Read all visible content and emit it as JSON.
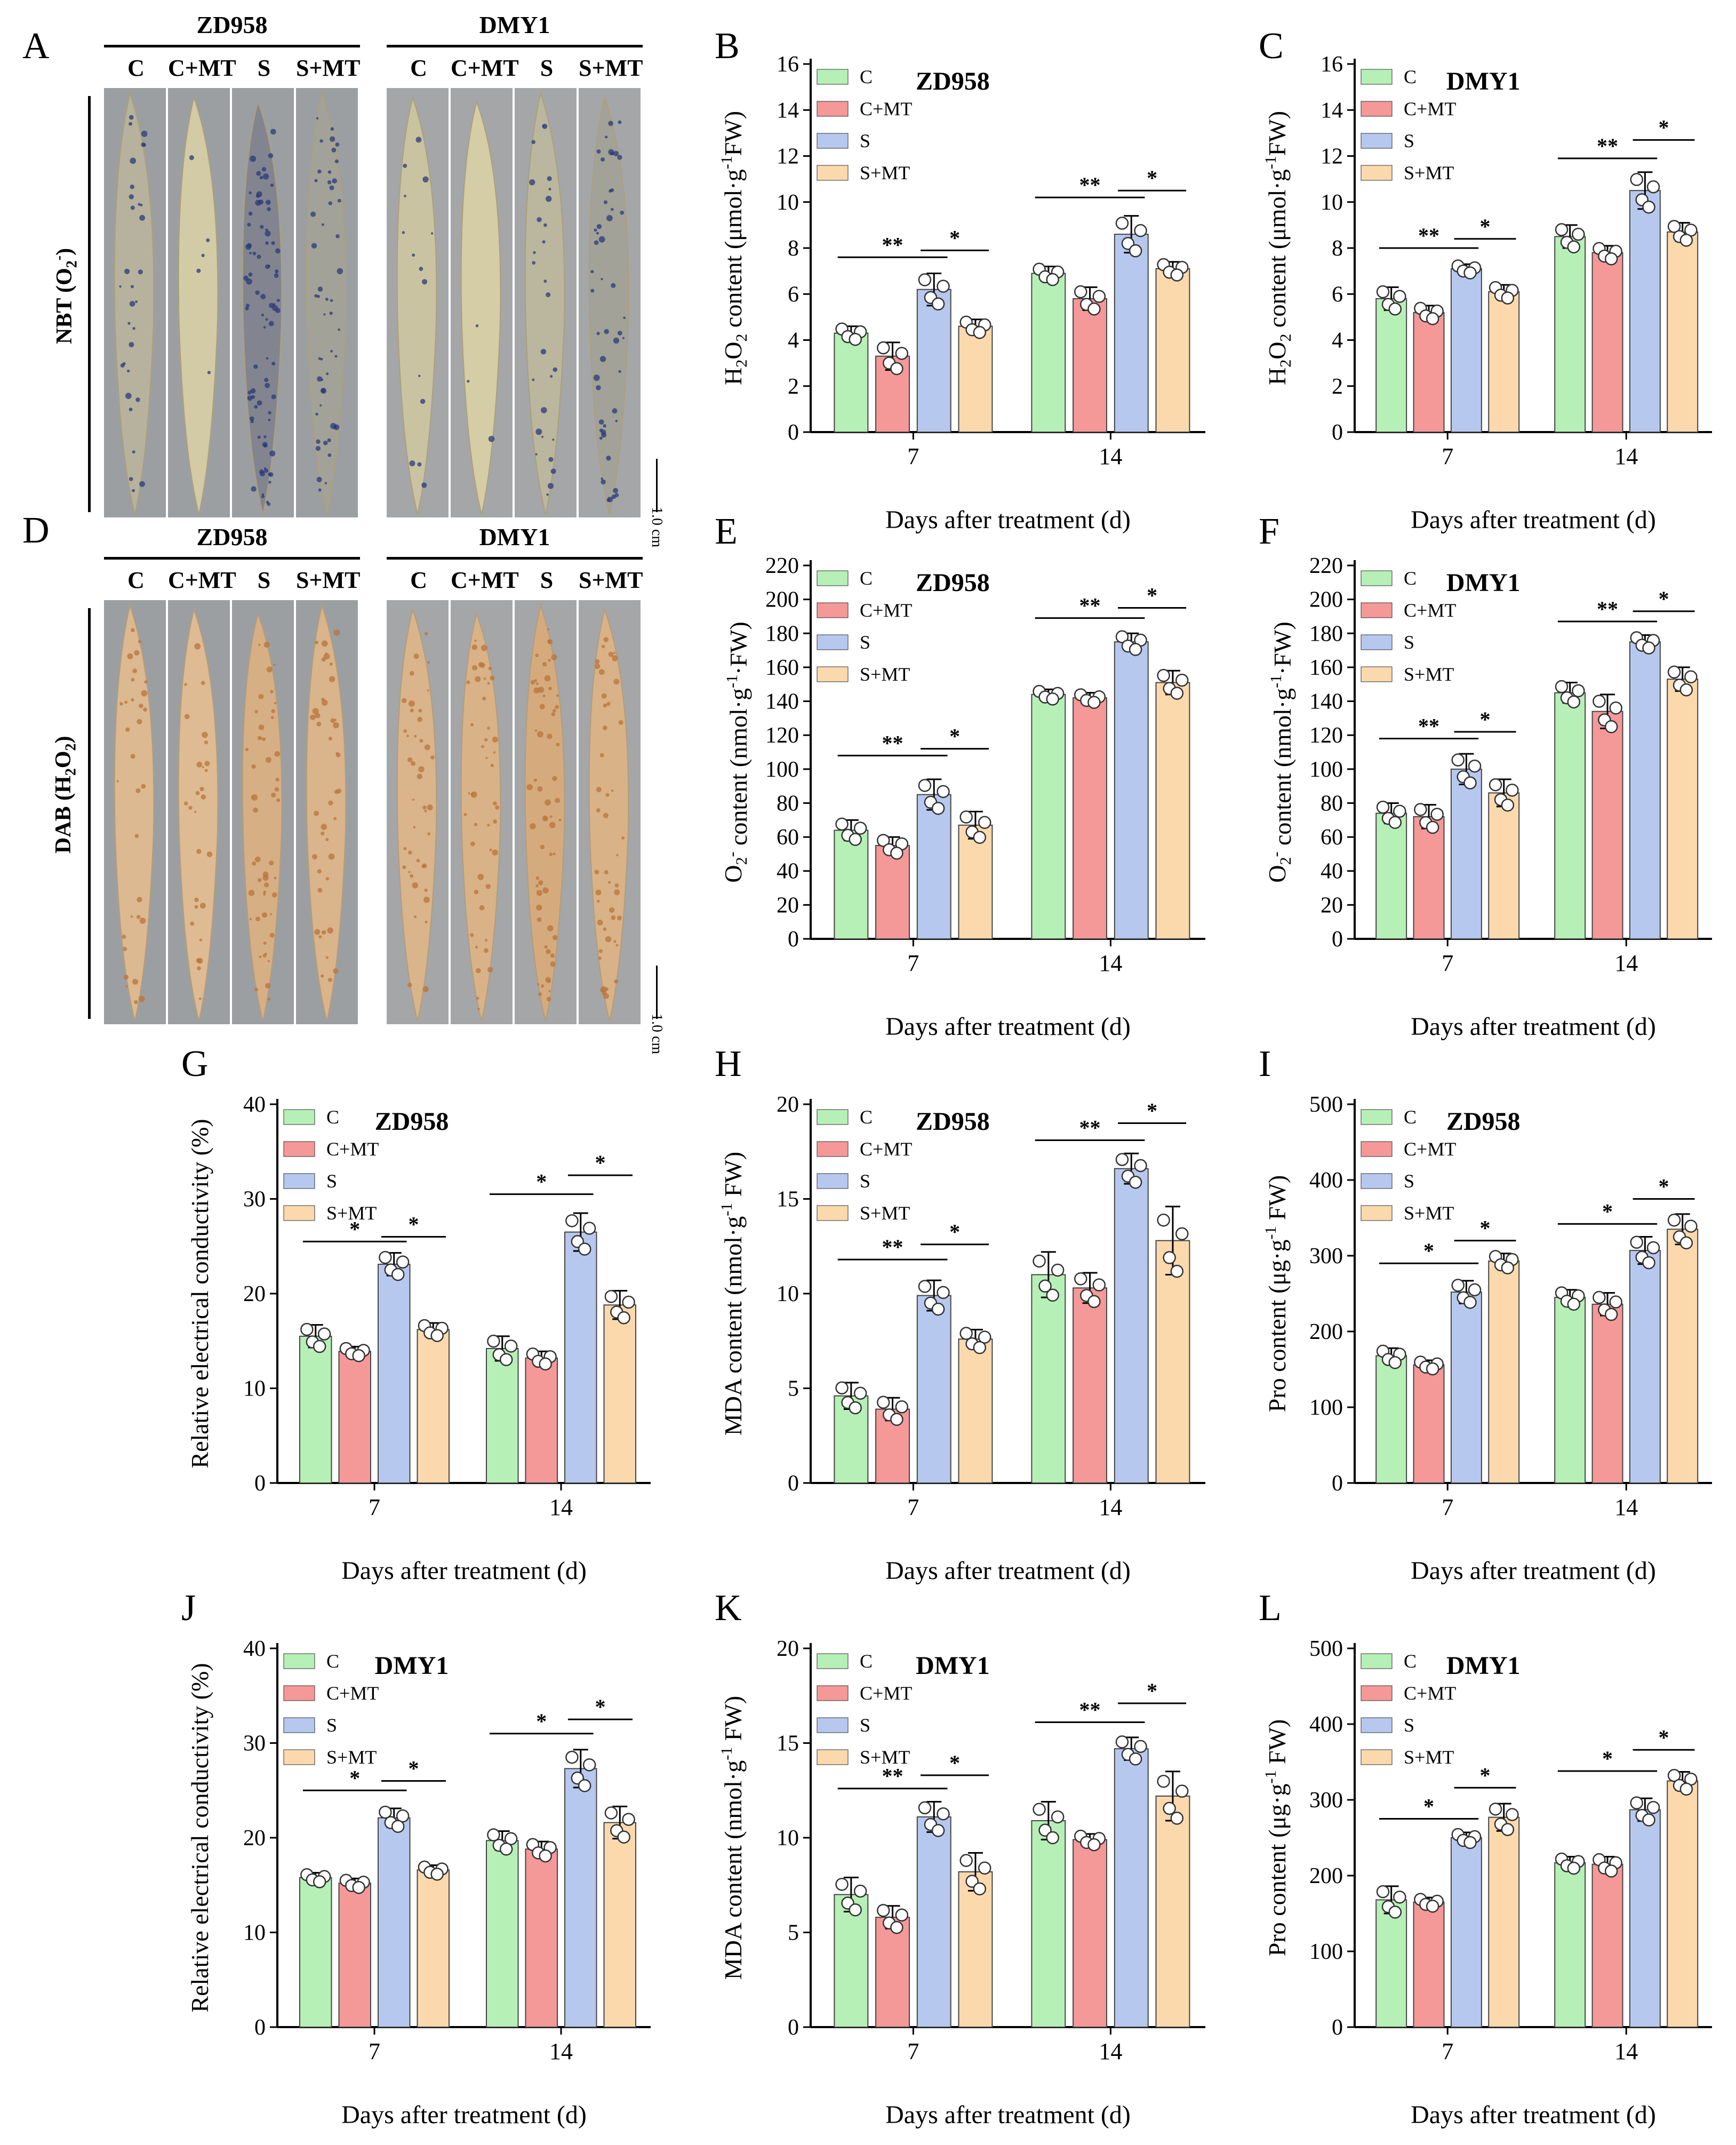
{
  "panel_labels": [
    "A",
    "B",
    "C",
    "D",
    "E",
    "F",
    "G",
    "H",
    "I",
    "J",
    "K",
    "L"
  ],
  "photo_panels": [
    {
      "label": "A",
      "stain_label_main": "NBT (O",
      "stain_label_sub": "2",
      "stain_label_sup": "-",
      "stain_label_end": ")",
      "groups": [
        {
          "name": "ZD958",
          "columns": [
            "C",
            "C+MT",
            "S",
            "S+MT"
          ]
        },
        {
          "name": "DMY1",
          "columns": [
            "C",
            "C+MT",
            "S",
            "S+MT"
          ]
        }
      ],
      "scale_bar": "1.0 cm",
      "stain_color": "#2a3a78",
      "stain_intensity": [
        0.35,
        0.05,
        0.9,
        0.55,
        0.15,
        0.03,
        0.3,
        0.55
      ]
    },
    {
      "label": "D",
      "stain_label_main": "DAB (H",
      "stain_label_sub": "2",
      "stain_label_mid": "O",
      "stain_label_sub2": "2",
      "stain_label_end": ")",
      "groups": [
        {
          "name": "ZD958",
          "columns": [
            "C",
            "C+MT",
            "S",
            "S+MT"
          ]
        },
        {
          "name": "DMY1",
          "columns": [
            "C",
            "C+MT",
            "S",
            "S+MT"
          ]
        }
      ],
      "scale_bar": "1.0 cm",
      "stain_color": "#b8743a",
      "stain_intensity": [
        0.35,
        0.3,
        0.55,
        0.45,
        0.45,
        0.5,
        0.65,
        0.5
      ]
    }
  ],
  "colors": {
    "C": "#b6f0b6",
    "C+MT": "#f59898",
    "S": "#b7c8ef",
    "S+MT": "#fbd9ad"
  },
  "chart_data": [
    {
      "label": "B",
      "type": "bar",
      "title": "ZD958",
      "ylabel_parts": [
        "H",
        "2",
        "O",
        "2",
        " content (μmol·g",
        "-1",
        "FW)"
      ],
      "xlabel": "Days after treatment (d)",
      "categories": [
        "7",
        "14"
      ],
      "ylim": [
        0,
        16
      ],
      "yticks": [
        0,
        2,
        4,
        6,
        8,
        10,
        12,
        14,
        16
      ],
      "series": [
        {
          "name": "C",
          "values": [
            4.3,
            6.9
          ],
          "errors": [
            0.3,
            0.3
          ]
        },
        {
          "name": "C+MT",
          "values": [
            3.3,
            5.8
          ],
          "errors": [
            0.6,
            0.5
          ]
        },
        {
          "name": "S",
          "values": [
            6.2,
            8.6
          ],
          "errors": [
            0.7,
            0.8
          ]
        },
        {
          "name": "S+MT",
          "values": [
            4.6,
            7.1
          ],
          "errors": [
            0.3,
            0.3
          ]
        }
      ],
      "significance": [
        {
          "cat": 0,
          "from": 0,
          "to": 2,
          "text": "**",
          "y": 7.6
        },
        {
          "cat": 0,
          "from": 2,
          "to": 3,
          "text": "*",
          "y": 7.9
        },
        {
          "cat": 1,
          "from": 0,
          "to": 2,
          "text": "**",
          "y": 10.2
        },
        {
          "cat": 1,
          "from": 2,
          "to": 3,
          "text": "*",
          "y": 10.5
        }
      ]
    },
    {
      "label": "C",
      "type": "bar",
      "title": "DMY1",
      "ylabel_parts": [
        "H",
        "2",
        "O",
        "2",
        " content (μmol·g",
        "-1",
        "FW)"
      ],
      "xlabel": "Days after treatment (d)",
      "categories": [
        "7",
        "14"
      ],
      "ylim": [
        0,
        16
      ],
      "yticks": [
        0,
        2,
        4,
        6,
        8,
        10,
        12,
        14,
        16
      ],
      "series": [
        {
          "name": "C",
          "values": [
            5.8,
            8.5
          ],
          "errors": [
            0.5,
            0.5
          ]
        },
        {
          "name": "C+MT",
          "values": [
            5.2,
            7.8
          ],
          "errors": [
            0.3,
            0.3
          ]
        },
        {
          "name": "S",
          "values": [
            7.1,
            10.5
          ],
          "errors": [
            0.2,
            0.8
          ]
        },
        {
          "name": "S+MT",
          "values": [
            6.1,
            8.7
          ],
          "errors": [
            0.3,
            0.4
          ]
        }
      ],
      "significance": [
        {
          "cat": 0,
          "from": 0,
          "to": 2,
          "text": "**",
          "y": 8.0
        },
        {
          "cat": 0,
          "from": 2,
          "to": 3,
          "text": "*",
          "y": 8.4
        },
        {
          "cat": 1,
          "from": 0,
          "to": 2,
          "text": "**",
          "y": 11.9
        },
        {
          "cat": 1,
          "from": 2,
          "to": 3,
          "text": "*",
          "y": 12.7
        }
      ]
    },
    {
      "label": "E",
      "type": "bar",
      "title": "ZD958",
      "ylabel_parts": [
        "O",
        "2",
        "-",
        " content (nmol·g",
        "-1",
        "·FW)"
      ],
      "xlabel": "Days after treatment (d)",
      "categories": [
        "7",
        "14"
      ],
      "ylim": [
        0,
        220
      ],
      "yticks": [
        0,
        20,
        40,
        60,
        80,
        100,
        120,
        140,
        160,
        180,
        200,
        220
      ],
      "series": [
        {
          "name": "C",
          "values": [
            64,
            144
          ],
          "errors": [
            6,
            3
          ]
        },
        {
          "name": "C+MT",
          "values": [
            55,
            142
          ],
          "errors": [
            5,
            3
          ]
        },
        {
          "name": "S",
          "values": [
            85,
            175
          ],
          "errors": [
            9,
            5
          ]
        },
        {
          "name": "S+MT",
          "values": [
            67,
            151
          ],
          "errors": [
            8,
            7
          ]
        }
      ],
      "significance": [
        {
          "cat": 0,
          "from": 0,
          "to": 2,
          "text": "**",
          "y": 108
        },
        {
          "cat": 0,
          "from": 2,
          "to": 3,
          "text": "*",
          "y": 112
        },
        {
          "cat": 1,
          "from": 0,
          "to": 2,
          "text": "**",
          "y": 189
        },
        {
          "cat": 1,
          "from": 2,
          "to": 3,
          "text": "*",
          "y": 195
        }
      ]
    },
    {
      "label": "F",
      "type": "bar",
      "title": "DMY1",
      "ylabel_parts": [
        "O",
        "2",
        "-",
        " content (nmol·g",
        "-1",
        "·FW)"
      ],
      "xlabel": "Days after treatment (d)",
      "categories": [
        "7",
        "14"
      ],
      "ylim": [
        0,
        220
      ],
      "yticks": [
        0,
        20,
        40,
        60,
        80,
        100,
        120,
        140,
        160,
        180,
        200,
        220
      ],
      "series": [
        {
          "name": "C",
          "values": [
            74,
            145
          ],
          "errors": [
            6,
            6
          ]
        },
        {
          "name": "C+MT",
          "values": [
            72,
            134
          ],
          "errors": [
            7,
            10
          ]
        },
        {
          "name": "S",
          "values": [
            100,
            175
          ],
          "errors": [
            9,
            4
          ]
        },
        {
          "name": "S+MT",
          "values": [
            86,
            153
          ],
          "errors": [
            8,
            7
          ]
        }
      ],
      "significance": [
        {
          "cat": 0,
          "from": 0,
          "to": 2,
          "text": "**",
          "y": 118
        },
        {
          "cat": 0,
          "from": 2,
          "to": 3,
          "text": "*",
          "y": 122
        },
        {
          "cat": 1,
          "from": 0,
          "to": 2,
          "text": "**",
          "y": 187
        },
        {
          "cat": 1,
          "from": 2,
          "to": 3,
          "text": "*",
          "y": 193
        }
      ]
    },
    {
      "label": "G",
      "type": "bar",
      "title": "ZD958",
      "ylabel_parts": [
        "Relative electrical conductivity (%)"
      ],
      "xlabel": "Days after treatment (d)",
      "categories": [
        "7",
        "14"
      ],
      "ylim": [
        0,
        40
      ],
      "yticks": [
        0,
        10,
        20,
        30,
        40
      ],
      "series": [
        {
          "name": "C",
          "values": [
            15.5,
            14.2
          ],
          "errors": [
            1.2,
            1.3
          ]
        },
        {
          "name": "C+MT",
          "values": [
            13.9,
            13.2
          ],
          "errors": [
            0.5,
            0.7
          ]
        },
        {
          "name": "S",
          "values": [
            23.1,
            26.5
          ],
          "errors": [
            1.2,
            2.0
          ]
        },
        {
          "name": "S+MT",
          "values": [
            16.2,
            18.8
          ],
          "errors": [
            0.7,
            1.5
          ]
        }
      ],
      "significance": [
        {
          "cat": 0,
          "from": 0,
          "to": 2,
          "text": "*",
          "y": 25.5
        },
        {
          "cat": 0,
          "from": 2,
          "to": 3,
          "text": "*",
          "y": 26.0
        },
        {
          "cat": 1,
          "from": 0,
          "to": 2,
          "text": "*",
          "y": 30.5
        },
        {
          "cat": 1,
          "from": 2,
          "to": 3,
          "text": "*",
          "y": 32.5
        }
      ]
    },
    {
      "label": "H",
      "type": "bar",
      "title": "ZD958",
      "ylabel_parts": [
        "MDA content (nmol·g",
        "-1",
        " FW)"
      ],
      "xlabel": "Days after treatment (d)",
      "categories": [
        "7",
        "14"
      ],
      "ylim": [
        0,
        20
      ],
      "yticks": [
        0,
        5,
        10,
        15,
        20
      ],
      "series": [
        {
          "name": "C",
          "values": [
            4.6,
            11.0
          ],
          "errors": [
            0.7,
            1.2
          ]
        },
        {
          "name": "C+MT",
          "values": [
            3.9,
            10.3
          ],
          "errors": [
            0.6,
            0.8
          ]
        },
        {
          "name": "S",
          "values": [
            9.9,
            16.6
          ],
          "errors": [
            0.8,
            0.8
          ]
        },
        {
          "name": "S+MT",
          "values": [
            7.6,
            12.8
          ],
          "errors": [
            0.5,
            1.8
          ]
        }
      ],
      "significance": [
        {
          "cat": 0,
          "from": 0,
          "to": 2,
          "text": "**",
          "y": 11.8
        },
        {
          "cat": 0,
          "from": 2,
          "to": 3,
          "text": "*",
          "y": 12.6
        },
        {
          "cat": 1,
          "from": 0,
          "to": 2,
          "text": "**",
          "y": 18.1
        },
        {
          "cat": 1,
          "from": 2,
          "to": 3,
          "text": "*",
          "y": 19.0
        }
      ]
    },
    {
      "label": "I",
      "type": "bar",
      "title": "ZD958",
      "ylabel_parts": [
        "Pro content (μg·g",
        "-1",
        " FW)"
      ],
      "xlabel": "Days after treatment (d)",
      "categories": [
        "7",
        "14"
      ],
      "ylim": [
        0,
        500
      ],
      "yticks": [
        0,
        100,
        200,
        300,
        400,
        500
      ],
      "series": [
        {
          "name": "C",
          "values": [
            168,
            245
          ],
          "errors": [
            10,
            10
          ]
        },
        {
          "name": "C+MT",
          "values": [
            156,
            236
          ],
          "errors": [
            6,
            15
          ]
        },
        {
          "name": "S",
          "values": [
            252,
            307
          ],
          "errors": [
            15,
            18
          ]
        },
        {
          "name": "S+MT",
          "values": [
            293,
            335
          ],
          "errors": [
            10,
            20
          ]
        }
      ],
      "significance": [
        {
          "cat": 0,
          "from": 0,
          "to": 2,
          "text": "*",
          "y": 290
        },
        {
          "cat": 0,
          "from": 2,
          "to": 3,
          "text": "*",
          "y": 320
        },
        {
          "cat": 1,
          "from": 0,
          "to": 2,
          "text": "*",
          "y": 342
        },
        {
          "cat": 1,
          "from": 2,
          "to": 3,
          "text": "*",
          "y": 375
        }
      ]
    },
    {
      "label": "J",
      "type": "bar",
      "title": "DMY1",
      "ylabel_parts": [
        "Relative electrical conductivity (%)"
      ],
      "xlabel": "Days after treatment (d)",
      "categories": [
        "7",
        "14"
      ],
      "ylim": [
        0,
        40
      ],
      "yticks": [
        0,
        10,
        20,
        30,
        40
      ],
      "series": [
        {
          "name": "C",
          "values": [
            15.8,
            19.7
          ],
          "errors": [
            0.5,
            1.0
          ]
        },
        {
          "name": "C+MT",
          "values": [
            15.2,
            18.8
          ],
          "errors": [
            0.5,
            0.8
          ]
        },
        {
          "name": "S",
          "values": [
            22.1,
            27.3
          ],
          "errors": [
            1.0,
            2.0
          ]
        },
        {
          "name": "S+MT",
          "values": [
            16.6,
            21.6
          ],
          "errors": [
            0.5,
            1.7
          ]
        }
      ],
      "significance": [
        {
          "cat": 0,
          "from": 0,
          "to": 2,
          "text": "*",
          "y": 25.0
        },
        {
          "cat": 0,
          "from": 2,
          "to": 3,
          "text": "*",
          "y": 26.0
        },
        {
          "cat": 1,
          "from": 0,
          "to": 2,
          "text": "*",
          "y": 31.0
        },
        {
          "cat": 1,
          "from": 2,
          "to": 3,
          "text": "*",
          "y": 32.5
        }
      ]
    },
    {
      "label": "K",
      "type": "bar",
      "title": "DMY1",
      "ylabel_parts": [
        "MDA content (nmol·g",
        "-1",
        " FW)"
      ],
      "xlabel": "Days after treatment (d)",
      "categories": [
        "7",
        "14"
      ],
      "ylim": [
        0,
        20
      ],
      "yticks": [
        0,
        5,
        10,
        15,
        20
      ],
      "series": [
        {
          "name": "C",
          "values": [
            7.0,
            10.9
          ],
          "errors": [
            0.9,
            1.0
          ]
        },
        {
          "name": "C+MT",
          "values": [
            5.8,
            9.9
          ],
          "errors": [
            0.6,
            0.3
          ]
        },
        {
          "name": "S",
          "values": [
            11.1,
            14.7
          ],
          "errors": [
            0.8,
            0.6
          ]
        },
        {
          "name": "S+MT",
          "values": [
            8.2,
            12.2
          ],
          "errors": [
            1.0,
            1.3
          ]
        }
      ],
      "significance": [
        {
          "cat": 0,
          "from": 0,
          "to": 2,
          "text": "**",
          "y": 12.6
        },
        {
          "cat": 0,
          "from": 2,
          "to": 3,
          "text": "*",
          "y": 13.3
        },
        {
          "cat": 1,
          "from": 0,
          "to": 2,
          "text": "**",
          "y": 16.1
        },
        {
          "cat": 1,
          "from": 2,
          "to": 3,
          "text": "*",
          "y": 17.1
        }
      ]
    },
    {
      "label": "L",
      "type": "bar",
      "title": "DMY1",
      "ylabel_parts": [
        "Pro content (μg·g",
        "-1",
        " FW)"
      ],
      "xlabel": "Days after treatment (d)",
      "categories": [
        "7",
        "14"
      ],
      "ylim": [
        0,
        500
      ],
      "yticks": [
        0,
        100,
        200,
        300,
        400,
        500
      ],
      "series": [
        {
          "name": "C",
          "values": [
            168,
            217
          ],
          "errors": [
            18,
            8
          ]
        },
        {
          "name": "C+MT",
          "values": [
            165,
            215
          ],
          "errors": [
            6,
            10
          ]
        },
        {
          "name": "S",
          "values": [
            250,
            287
          ],
          "errors": [
            7,
            15
          ]
        },
        {
          "name": "S+MT",
          "values": [
            277,
            325
          ],
          "errors": [
            18,
            12
          ]
        }
      ],
      "significance": [
        {
          "cat": 0,
          "from": 0,
          "to": 2,
          "text": "*",
          "y": 275
        },
        {
          "cat": 0,
          "from": 2,
          "to": 3,
          "text": "*",
          "y": 316
        },
        {
          "cat": 1,
          "from": 0,
          "to": 2,
          "text": "*",
          "y": 338
        },
        {
          "cat": 1,
          "from": 2,
          "to": 3,
          "text": "*",
          "y": 366
        }
      ]
    }
  ]
}
